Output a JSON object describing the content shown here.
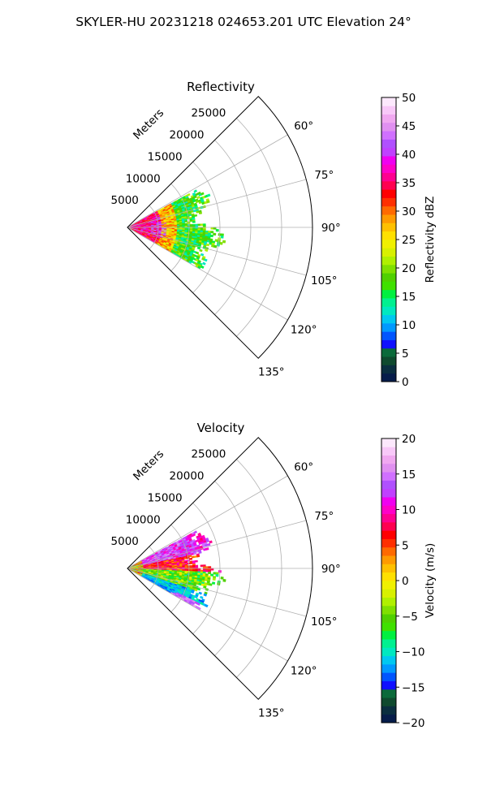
{
  "figure": {
    "suptitle": "SKYLER-HU  20231218  024653.201 UTC Elevation 24°"
  },
  "chart_data": [
    {
      "type": "heatmap",
      "projection": "polar-sector",
      "title": "Reflectivity",
      "radial_label": "Meters",
      "radial_ticks": [
        5000,
        10000,
        15000,
        20000,
        25000
      ],
      "radial_max": 30000,
      "azimuth_range_deg": [
        45,
        135
      ],
      "azimuth_ticks": [
        "60°",
        "75°",
        "90°",
        "105°",
        "120°",
        "135°"
      ],
      "grid": true,
      "data_extent": {
        "range_max_m": 16000,
        "azimuth_deg": [
          62,
          120
        ]
      },
      "colorbar": {
        "label": "Reflectivity dBZ",
        "range": [
          0,
          50
        ],
        "ticks": [
          "0",
          "5",
          "10",
          "15",
          "20",
          "25",
          "30",
          "35",
          "40",
          "45",
          "50"
        ],
        "colors": [
          "#061c4a",
          "#0a2e3f",
          "#0f4a2e",
          "#0b6a3a",
          "#1010ff",
          "#0055ff",
          "#0099ff",
          "#00c8f0",
          "#00e8c0",
          "#00f090",
          "#00f040",
          "#40e000",
          "#50d000",
          "#80e000",
          "#b0f000",
          "#d8f000",
          "#f0f000",
          "#ffe000",
          "#ffc000",
          "#ff9a00",
          "#ff6a00",
          "#ff3000",
          "#ff0000",
          "#ff0050",
          "#ff0090",
          "#ff00c8",
          "#f000f0",
          "#c040ff",
          "#b050ff",
          "#d070ff",
          "#e090f0",
          "#f0a8f0",
          "#f8c8f8",
          "#fce8fc"
        ]
      }
    },
    {
      "type": "heatmap",
      "projection": "polar-sector",
      "title": "Velocity",
      "radial_label": "Meters",
      "radial_ticks": [
        5000,
        10000,
        15000,
        20000,
        25000
      ],
      "radial_max": 30000,
      "azimuth_range_deg": [
        45,
        135
      ],
      "azimuth_ticks": [
        "60°",
        "75°",
        "90°",
        "105°",
        "120°",
        "135°"
      ],
      "grid": true,
      "data_extent": {
        "range_max_m": 16000,
        "azimuth_deg": [
          62,
          120
        ]
      },
      "colorbar": {
        "label": "Velocity (m/s)",
        "range": [
          -20,
          20
        ],
        "ticks": [
          "−20",
          "−15",
          "−10",
          "−5",
          "0",
          "5",
          "10",
          "15",
          "20"
        ],
        "colors": [
          "#061c4a",
          "#0a2e3f",
          "#0f4a2e",
          "#0b6a3a",
          "#1010ff",
          "#0055ff",
          "#0099ff",
          "#00c8f0",
          "#00e8c0",
          "#00f090",
          "#00f040",
          "#40e000",
          "#50d000",
          "#80e000",
          "#b0f000",
          "#d8f000",
          "#f0f000",
          "#ffe000",
          "#ffc000",
          "#ff9a00",
          "#ff6a00",
          "#ff3000",
          "#ff0000",
          "#ff0050",
          "#ff0090",
          "#ff00c8",
          "#f000f0",
          "#c040ff",
          "#b050ff",
          "#d070ff",
          "#e090f0",
          "#f0a8f0",
          "#f8c8f8",
          "#fce8fc"
        ]
      }
    }
  ]
}
